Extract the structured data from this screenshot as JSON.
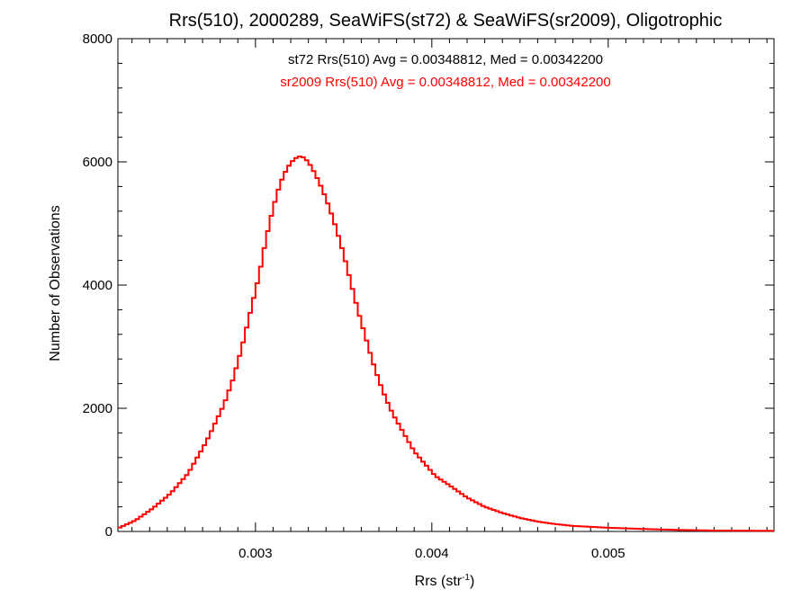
{
  "chart_data": {
    "type": "histogram",
    "title": "Rrs(510), 2000289, SeaWiFS(st72) & SeaWiFS(sr2009), Oligotrophic",
    "xlabel": {
      "base": "Rrs (str",
      "sup": "-1",
      "close": ")"
    },
    "ylabel": "Number of Observations",
    "xlim": [
      0.00222,
      0.00594
    ],
    "ylim": [
      0,
      8000
    ],
    "x_ticks": [
      0.003,
      0.004,
      0.005
    ],
    "x_tick_labels": [
      "0.003",
      "0.004",
      "0.005"
    ],
    "y_ticks": [
      0,
      2000,
      4000,
      6000,
      8000
    ],
    "y_tick_labels": [
      "0",
      "2000",
      "4000",
      "6000",
      "8000"
    ],
    "annotations": [
      {
        "text": "st72 Rrs(510) Avg = 0.00348812, Med = 0.00342200",
        "color": "#000000"
      },
      {
        "text": "sr2009 Rrs(510) Avg = 0.00348812, Med = 0.00342200",
        "color": "#ff0000"
      }
    ],
    "series": [
      {
        "color": "#ff0000"
      }
    ],
    "bin_width": 2e-05,
    "bins": {
      "x": [
        0.00222,
        0.00232,
        0.00242,
        0.00252,
        0.00262,
        0.00272,
        0.00282,
        0.00287,
        0.00292,
        0.00297,
        0.00302,
        0.00306,
        0.0031,
        0.00314,
        0.00318,
        0.00322,
        0.00326,
        0.0033,
        0.00334,
        0.00338,
        0.00342,
        0.00346,
        0.0035,
        0.00354,
        0.00358,
        0.00362,
        0.00366,
        0.0037,
        0.00374,
        0.00378,
        0.00382,
        0.00386,
        0.0039,
        0.00396,
        0.00402,
        0.0041,
        0.0042,
        0.0043,
        0.0044,
        0.0045,
        0.0046,
        0.0047,
        0.0048,
        0.005,
        0.0052,
        0.0054,
        0.0056,
        0.00594
      ],
      "y": [
        50,
        180,
        380,
        620,
        950,
        1450,
        2050,
        2450,
        2950,
        3550,
        4150,
        4750,
        5250,
        5650,
        5900,
        6050,
        6100,
        6000,
        5800,
        5550,
        5250,
        4900,
        4500,
        4050,
        3600,
        3200,
        2800,
        2450,
        2150,
        1900,
        1700,
        1500,
        1300,
        1100,
        900,
        750,
        550,
        400,
        300,
        220,
        160,
        120,
        90,
        60,
        40,
        25,
        15,
        10
      ]
    }
  }
}
